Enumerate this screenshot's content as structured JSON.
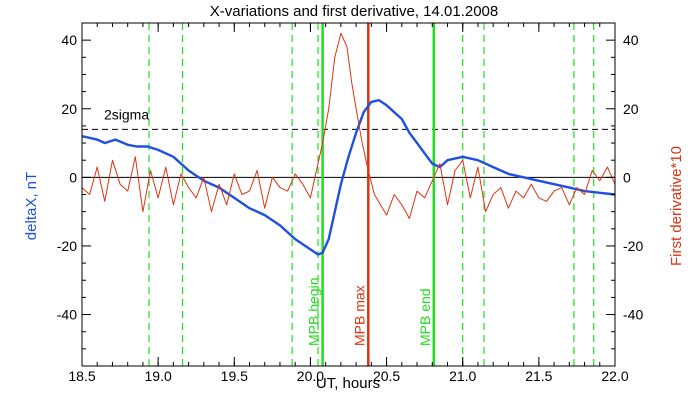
{
  "chart_data": {
    "type": "line",
    "title": "X-variations and first derivative, 14.01.2008",
    "xlabel": "UT, hours",
    "ylabel_left": "deltaX, nT",
    "ylabel_right": "First derivative*10",
    "xlim": [
      18.5,
      22.0
    ],
    "ylim": [
      -55,
      45
    ],
    "x_ticks": [
      "18.5",
      "19.0",
      "19.5",
      "20.0",
      "20.5",
      "21.0",
      "21.5",
      "22.0"
    ],
    "y_ticks": [
      "-40",
      "-20",
      "0",
      "20",
      "40"
    ],
    "colors": {
      "deltax": "#1f50e0",
      "derivative": "#dd3311",
      "markers": "#22dd22",
      "mpb_max": "#dd3311",
      "reference": "#000000"
    },
    "reference_lines": [
      {
        "label": "",
        "y": 0,
        "style": "solid"
      },
      {
        "label": "2sigma",
        "y": 14,
        "style": "dashed"
      }
    ],
    "vertical_lines": [
      {
        "x": 18.94,
        "style": "dashed",
        "color": "#22dd22",
        "label": ""
      },
      {
        "x": 19.16,
        "style": "dashed",
        "color": "#22dd22",
        "label": ""
      },
      {
        "x": 19.88,
        "style": "dashed",
        "color": "#22dd22",
        "label": ""
      },
      {
        "x": 20.05,
        "style": "dashed",
        "color": "#22dd22",
        "label": ""
      },
      {
        "x": 20.08,
        "style": "solid",
        "color": "#22dd22",
        "label": "MPB begin"
      },
      {
        "x": 20.38,
        "style": "solid",
        "color": "#dd3311",
        "label": "MPB max"
      },
      {
        "x": 20.81,
        "style": "solid",
        "color": "#22dd22",
        "label": "MPB end"
      },
      {
        "x": 21.0,
        "style": "dashed",
        "color": "#22dd22",
        "label": ""
      },
      {
        "x": 21.14,
        "style": "dashed",
        "color": "#22dd22",
        "label": ""
      },
      {
        "x": 21.73,
        "style": "dashed",
        "color": "#22dd22",
        "label": ""
      },
      {
        "x": 21.86,
        "style": "dashed",
        "color": "#22dd22",
        "label": ""
      }
    ],
    "series": [
      {
        "x": [
          18.5,
          18.6,
          18.65,
          18.72,
          18.8,
          18.86,
          18.93,
          19.0,
          19.1,
          19.2,
          19.3,
          19.4,
          19.5,
          19.6,
          19.7,
          19.8,
          19.9,
          20.0,
          20.05,
          20.08,
          20.12,
          20.16,
          20.2,
          20.25,
          20.3,
          20.35,
          20.4,
          20.45,
          20.5,
          20.55,
          20.6,
          20.65,
          20.7,
          20.75,
          20.8,
          20.85,
          20.9,
          21.0,
          21.1,
          21.2,
          21.3,
          21.4,
          21.5,
          21.6,
          21.7,
          21.8,
          21.9,
          22.0
        ],
        "values": [
          12,
          11,
          10,
          11,
          9.5,
          9,
          9,
          8,
          6,
          2,
          -1,
          -3,
          -6,
          -9,
          -11,
          -14,
          -18,
          -21,
          -22.5,
          -22,
          -18,
          -10,
          -2,
          6,
          13,
          19,
          22,
          22.5,
          21,
          19,
          17,
          13,
          10,
          7,
          4,
          3,
          5,
          6,
          5,
          3,
          1,
          0,
          -1,
          -2,
          -3,
          -4,
          -4.5,
          -5
        ]
      },
      {
        "x": [
          18.5,
          18.55,
          18.6,
          18.65,
          18.7,
          18.75,
          18.8,
          18.85,
          18.9,
          18.95,
          19.0,
          19.05,
          19.1,
          19.15,
          19.2,
          19.25,
          19.3,
          19.35,
          19.4,
          19.45,
          19.5,
          19.55,
          19.6,
          19.65,
          19.7,
          19.75,
          19.8,
          19.85,
          19.9,
          19.95,
          20.0,
          20.05,
          20.08,
          20.12,
          20.16,
          20.2,
          20.24,
          20.27,
          20.3,
          20.34,
          20.38,
          20.42,
          20.46,
          20.5,
          20.55,
          20.6,
          20.65,
          20.7,
          20.75,
          20.8,
          20.85,
          20.9,
          20.95,
          21.0,
          21.05,
          21.1,
          21.15,
          21.2,
          21.25,
          21.3,
          21.35,
          21.4,
          21.45,
          21.5,
          21.55,
          21.6,
          21.65,
          21.7,
          21.75,
          21.8,
          21.85,
          21.9,
          21.95,
          22.0
        ],
        "values": [
          -3,
          -5,
          3,
          -7,
          5,
          -2,
          -4,
          6,
          -10,
          2,
          -6,
          3,
          -8,
          1,
          -3,
          -6,
          0,
          -10,
          -2,
          -8,
          1,
          -5,
          -4,
          2,
          -9,
          0,
          -3,
          -4,
          1,
          -2,
          -6,
          4,
          10,
          20,
          35,
          42,
          38,
          28,
          20,
          10,
          2,
          -5,
          -8,
          -11,
          -5,
          -8,
          -12,
          -4,
          -6,
          -1,
          4,
          -8,
          2,
          5,
          -6,
          3,
          -10,
          -5,
          -3,
          -9,
          -4,
          -6,
          -2,
          -6,
          -7,
          -4,
          -3,
          -8,
          -3,
          -5,
          2,
          -1,
          3,
          -2
        ]
      }
    ]
  }
}
